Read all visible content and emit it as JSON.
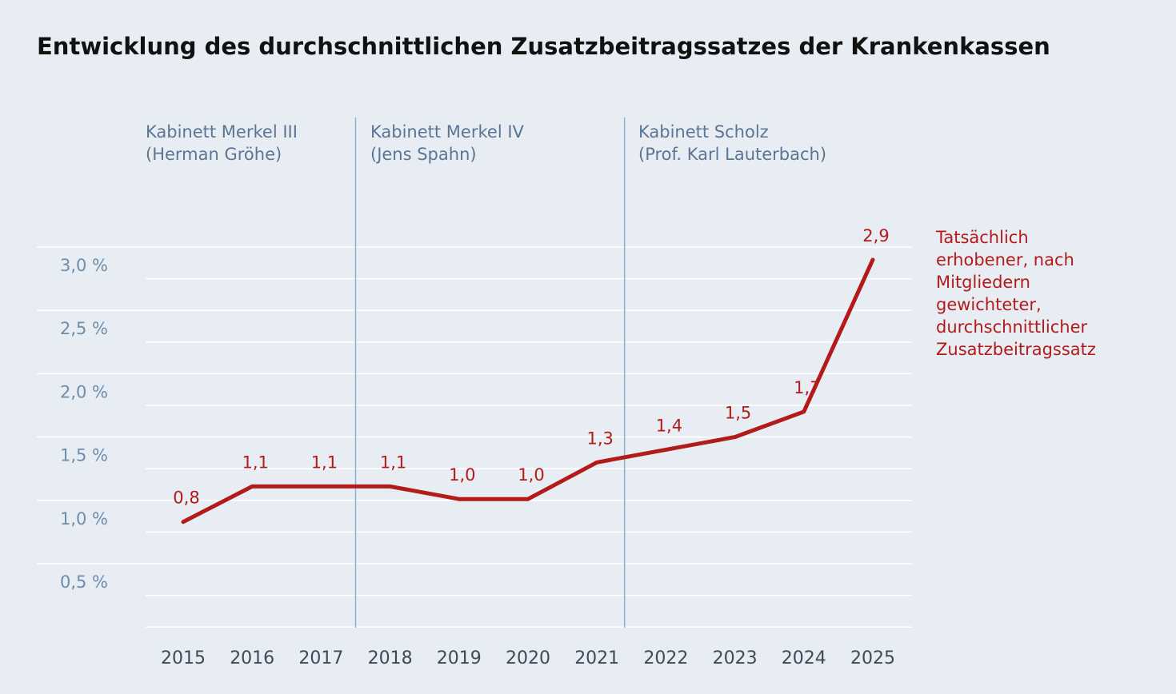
{
  "chart_data": {
    "type": "line",
    "title": "Entwicklung des durchschnittlichen Zusatzbeitragssatzes der Krankenkassen",
    "x": [
      "2015",
      "2016",
      "2017",
      "2018",
      "2019",
      "2020",
      "2021",
      "2022",
      "2023",
      "2024",
      "2025"
    ],
    "series": [
      {
        "name": "Tatsächlich erhobener, nach Mitgliedern gewichteter, durchschnittlicher Zusatzbeitragssatz",
        "values": [
          0.83,
          1.11,
          1.11,
          1.11,
          1.01,
          1.01,
          1.3,
          1.4,
          1.5,
          1.7,
          2.9
        ],
        "labels": [
          "0,8",
          "1,1",
          "1,1",
          "1,1",
          "1,0",
          "1,0",
          "1,3",
          "1,4",
          "1,5",
          "1,7",
          "2,9"
        ],
        "color": "#b31b1b"
      }
    ],
    "y_ticks": [
      {
        "value": 0.5,
        "label": "0,5 %"
      },
      {
        "value": 1.0,
        "label": "1,0 %"
      },
      {
        "value": 1.5,
        "label": "1,5 %"
      },
      {
        "value": 2.0,
        "label": "2,0 %"
      },
      {
        "value": 2.5,
        "label": "2,5 %"
      },
      {
        "value": 3.0,
        "label": "3,0 %"
      }
    ],
    "ylim": [
      0,
      3.0
    ],
    "grid": true,
    "legend_lines": [
      "Tatsächlich",
      "erhobener, nach",
      "Mitgliedern",
      "gewichteter,",
      "durchschnittlicher",
      "Zusatzbeitragssatz"
    ],
    "annotations": [
      {
        "lines": [
          "Kabinett Merkel III",
          "(Herman Gröhe)"
        ]
      },
      {
        "lines": [
          "Kabinett Merkel IV",
          "(Jens Spahn)"
        ]
      },
      {
        "lines": [
          "Kabinett Scholz",
          "(Prof. Karl Lauterbach)"
        ]
      }
    ],
    "period_dividers": [
      2017.5,
      2021.4
    ]
  }
}
